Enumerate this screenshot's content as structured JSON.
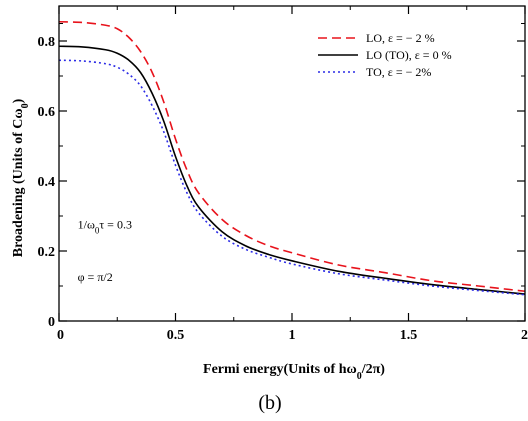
{
  "chart_data": {
    "type": "line",
    "xlabel": "Fermi energy(Units of hω",
    "xlabel_sub": "0",
    "xlabel_tail": "/2π)",
    "ylabel": "Broadening (Units of Cω",
    "ylabel_sub": "0",
    "ylabel_tail": ")",
    "panel_label": "(b)",
    "xlim": [
      0,
      2
    ],
    "ylim": [
      0,
      0.9
    ],
    "x_ticks": [
      {
        "value": 0,
        "label": "0"
      },
      {
        "value": 0.5,
        "label": "0.5"
      },
      {
        "value": 1,
        "label": "1"
      },
      {
        "value": 1.5,
        "label": "1.5"
      },
      {
        "value": 2,
        "label": "2"
      }
    ],
    "y_ticks": [
      {
        "value": 0,
        "label": "0"
      },
      {
        "value": 0.2,
        "label": "0.2"
      },
      {
        "value": 0.4,
        "label": "0.4"
      },
      {
        "value": 0.6,
        "label": "0.6"
      },
      {
        "value": 0.8,
        "label": "0.8"
      }
    ],
    "annotations": [
      {
        "text": "1/ω",
        "sub": "0",
        "tail": "τ = 0.3",
        "x": 0.08,
        "y": 0.265
      },
      {
        "text": "φ = π/2",
        "x": 0.08,
        "y": 0.115
      }
    ],
    "series": [
      {
        "name": "LO, ε = − 2 %",
        "color": "#e8131c",
        "dash": "dashed",
        "x": [
          0,
          0.1,
          0.2,
          0.25,
          0.3,
          0.35,
          0.4,
          0.45,
          0.5,
          0.55,
          0.6,
          0.7,
          0.8,
          0.9,
          1.0,
          1.2,
          1.4,
          1.6,
          1.8,
          2.0
        ],
        "y": [
          0.855,
          0.853,
          0.845,
          0.835,
          0.81,
          0.77,
          0.71,
          0.625,
          0.52,
          0.43,
          0.365,
          0.29,
          0.245,
          0.215,
          0.195,
          0.16,
          0.138,
          0.115,
          0.1,
          0.085
        ]
      },
      {
        "name": "LO (TO), ε = 0 %",
        "color": "#000000",
        "dash": "solid",
        "x": [
          0,
          0.1,
          0.2,
          0.25,
          0.3,
          0.35,
          0.4,
          0.45,
          0.5,
          0.55,
          0.6,
          0.7,
          0.8,
          0.9,
          1.0,
          1.2,
          1.4,
          1.6,
          1.8,
          2.0
        ],
        "y": [
          0.785,
          0.783,
          0.775,
          0.765,
          0.745,
          0.71,
          0.65,
          0.57,
          0.47,
          0.385,
          0.325,
          0.255,
          0.215,
          0.19,
          0.172,
          0.142,
          0.122,
          0.104,
          0.09,
          0.077
        ]
      },
      {
        "name": "TO, ε = − 2%",
        "color": "#2b2be6",
        "dash": "dotted",
        "x": [
          0,
          0.1,
          0.2,
          0.25,
          0.3,
          0.35,
          0.4,
          0.45,
          0.5,
          0.55,
          0.6,
          0.7,
          0.8,
          0.9,
          1.0,
          1.2,
          1.4,
          1.6,
          1.8,
          2.0
        ],
        "y": [
          0.745,
          0.743,
          0.735,
          0.725,
          0.705,
          0.672,
          0.615,
          0.54,
          0.445,
          0.365,
          0.308,
          0.242,
          0.205,
          0.182,
          0.163,
          0.135,
          0.117,
          0.1,
          0.087,
          0.075
        ]
      }
    ],
    "legend_position": "top-right"
  }
}
